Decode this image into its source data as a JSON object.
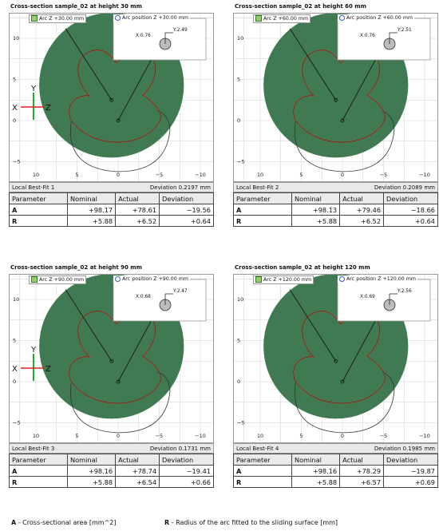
{
  "panels": [
    {
      "title": "Cross-section sample_02 at height 30 mm",
      "arc_z_label": "Arc Z +30.00 mm",
      "arc_pos_label": "Arc position Z +30.00 mm",
      "arc_x": "X:0.76",
      "arc_y": "Y:2.49",
      "show_axes": true,
      "bestfit_label": "Local Best-Fit 1",
      "deviation_label": "Deviation 0.2197 mm",
      "table": {
        "headers": [
          "Parameter",
          "Nominal",
          "Actual",
          "Deviation"
        ],
        "rows": [
          [
            "A",
            "+98.17",
            "+78.61",
            "−19.56"
          ],
          [
            "R",
            "+5.88",
            "+6.52",
            "+0.64"
          ]
        ]
      }
    },
    {
      "title": "Cross-section sample_02 at height 60 mm",
      "arc_z_label": "Arc Z +60.00 mm",
      "arc_pos_label": "Arc position Z +60.00 mm",
      "arc_x": "X:0.76",
      "arc_y": "Y:2.51",
      "show_axes": false,
      "bestfit_label": "Local Best-Fit 2",
      "deviation_label": "Deviation 0.2089 mm",
      "table": {
        "headers": [
          "Parameter",
          "Nominal",
          "Actual",
          "Deviation"
        ],
        "rows": [
          [
            "A",
            "+98.13",
            "+79.46",
            "−18.66"
          ],
          [
            "R",
            "+5.88",
            "+6.52",
            "+0.64"
          ]
        ]
      }
    },
    {
      "title": "Cross-section sample_02 at height 90 mm",
      "arc_z_label": "Arc Z +90.00 mm",
      "arc_pos_label": "Arc position Z +90.00 mm",
      "arc_x": "X:0.68",
      "arc_y": "Y:2.47",
      "show_axes": true,
      "bestfit_label": "Local Best-Fit 3",
      "deviation_label": "Deviation 0.1731 mm",
      "table": {
        "headers": [
          "Parameter",
          "Nominal",
          "Actual",
          "Deviation"
        ],
        "rows": [
          [
            "A",
            "+98.16",
            "+78.74",
            "−19.41"
          ],
          [
            "R",
            "+5.88",
            "+6.54",
            "+0.66"
          ]
        ]
      }
    },
    {
      "title": "Cross-section sample_02 at height 120 mm",
      "arc_z_label": "Arc Z +120.00 mm",
      "arc_pos_label": "Arc position Z +120.00 mm",
      "arc_x": "X:0.69",
      "arc_y": "Y:2.56",
      "show_axes": false,
      "bestfit_label": "Local Best-Fit 4",
      "deviation_label": "Deviation 0.1985 mm",
      "table": {
        "headers": [
          "Parameter",
          "Nominal",
          "Actual",
          "Deviation"
        ],
        "rows": [
          [
            "A",
            "+98.16",
            "+78.29",
            "−19.87"
          ],
          [
            "R",
            "+5.88",
            "+6.57",
            "+0.69"
          ]
        ]
      }
    }
  ],
  "plot_ticks": {
    "x": [
      "10",
      "5",
      "0",
      "−5",
      "−10"
    ],
    "y": [
      "10",
      "5",
      "0",
      "−5"
    ]
  },
  "axis_letters": {
    "y": "Y",
    "x": "X",
    "z": "Z"
  },
  "legend": {
    "a_key": "A",
    "a_text": " - Cross-sectional area [mm^2]",
    "r_key": "R",
    "r_text": " - Radius of the arc fitted to the sliding surface [mm]"
  },
  "colors": {
    "fill": "#3f7a52",
    "outline": "#b24a2f",
    "grid": "#d0d0d0",
    "axis_x": "#e02020",
    "axis_y": "#22aa33"
  }
}
